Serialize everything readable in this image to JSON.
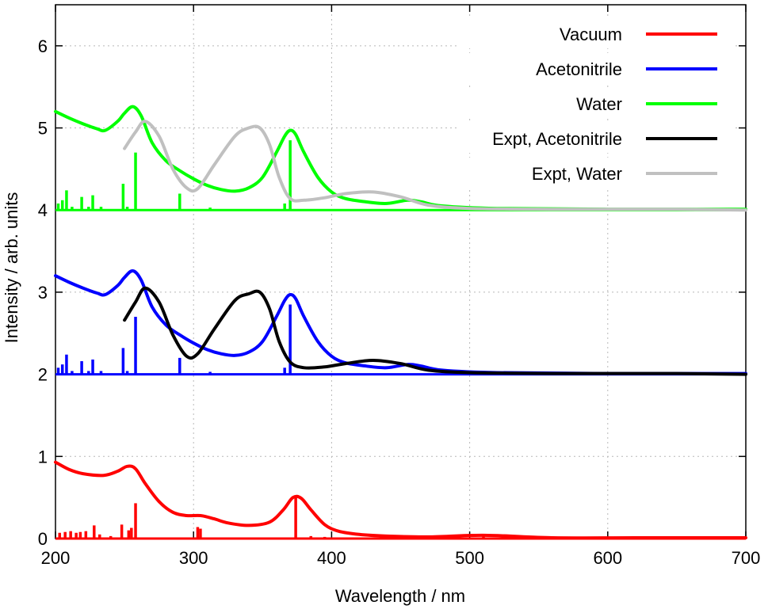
{
  "chart_data": {
    "type": "line",
    "title": "",
    "xlabel": "Wavelength / nm",
    "ylabel": "Intensity / arb. units",
    "xlim": [
      200,
      700
    ],
    "ylim": [
      0,
      6.5
    ],
    "x_ticks": [
      200,
      300,
      400,
      500,
      600,
      700
    ],
    "y_ticks": [
      0,
      1,
      2,
      3,
      4,
      5,
      6
    ],
    "x_tick_labels": [
      "200",
      "300",
      "400",
      "500",
      "600",
      "700"
    ],
    "y_tick_labels": [
      "0",
      "1",
      "2",
      "3",
      "4",
      "5",
      "6"
    ],
    "grid": true,
    "legend_position": "top-right",
    "series": [
      {
        "name": "Vacuum",
        "color": "#ff0000",
        "x": [
          200,
          210,
          220,
          235,
          245,
          252,
          258,
          265,
          275,
          285,
          295,
          305,
          315,
          325,
          340,
          355,
          365,
          372,
          378,
          385,
          395,
          405,
          420,
          440,
          470,
          510,
          560,
          620,
          700
        ],
        "y": [
          0.93,
          0.84,
          0.79,
          0.77,
          0.82,
          0.88,
          0.85,
          0.67,
          0.45,
          0.32,
          0.28,
          0.28,
          0.24,
          0.19,
          0.16,
          0.2,
          0.35,
          0.5,
          0.49,
          0.35,
          0.17,
          0.09,
          0.05,
          0.03,
          0.02,
          0.04,
          0.01,
          0.01,
          0.01
        ],
        "sticks": [
          [
            203,
            0.07
          ],
          [
            207,
            0.08
          ],
          [
            211,
            0.09
          ],
          [
            215,
            0.07
          ],
          [
            218,
            0.08
          ],
          [
            222,
            0.09
          ],
          [
            228,
            0.16
          ],
          [
            232,
            0.05
          ],
          [
            240,
            0.03
          ],
          [
            248,
            0.17
          ],
          [
            253,
            0.1
          ],
          [
            255,
            0.13
          ],
          [
            258,
            0.43
          ],
          [
            303,
            0.14
          ],
          [
            305,
            0.12
          ],
          [
            374,
            0.5
          ],
          [
            385,
            0.03
          ],
          [
            395,
            0.02
          ],
          [
            510,
            0.03
          ]
        ]
      },
      {
        "name": "Acetonitrile",
        "color": "#0000ff",
        "x": [
          200,
          210,
          220,
          230,
          236,
          245,
          250,
          256,
          262,
          270,
          280,
          290,
          300,
          310,
          320,
          330,
          340,
          350,
          360,
          366,
          370,
          374,
          380,
          390,
          400,
          410,
          425,
          440,
          455,
          465,
          480,
          520,
          600,
          700
        ],
        "y": [
          3.2,
          3.12,
          3.05,
          2.99,
          2.97,
          3.08,
          3.18,
          3.26,
          3.15,
          2.82,
          2.6,
          2.48,
          2.38,
          2.3,
          2.25,
          2.23,
          2.27,
          2.4,
          2.7,
          2.9,
          2.97,
          2.92,
          2.7,
          2.4,
          2.22,
          2.14,
          2.1,
          2.08,
          2.12,
          2.1,
          2.05,
          2.02,
          2.01,
          2.01
        ],
        "sticks": [
          [
            202,
            2.08
          ],
          [
            205,
            2.12
          ],
          [
            208,
            2.24
          ],
          [
            212,
            2.04
          ],
          [
            219,
            2.16
          ],
          [
            224,
            2.04
          ],
          [
            227,
            2.18
          ],
          [
            233,
            2.04
          ],
          [
            249,
            2.32
          ],
          [
            252,
            2.04
          ],
          [
            258,
            2.7
          ],
          [
            290,
            2.2
          ],
          [
            312,
            2.03
          ],
          [
            366,
            2.08
          ],
          [
            370,
            2.85
          ]
        ],
        "baseline": 2
      },
      {
        "name": "Water",
        "color": "#00ff00",
        "x": [
          200,
          210,
          220,
          230,
          236,
          245,
          250,
          256,
          262,
          270,
          280,
          290,
          300,
          310,
          320,
          330,
          340,
          350,
          360,
          366,
          370,
          374,
          380,
          390,
          400,
          410,
          425,
          440,
          455,
          465,
          480,
          520,
          600,
          700
        ],
        "y": [
          5.2,
          5.12,
          5.05,
          4.99,
          4.97,
          5.08,
          5.18,
          5.26,
          5.15,
          4.82,
          4.6,
          4.48,
          4.38,
          4.3,
          4.25,
          4.23,
          4.27,
          4.4,
          4.7,
          4.9,
          4.97,
          4.92,
          4.7,
          4.4,
          4.22,
          4.14,
          4.1,
          4.08,
          4.12,
          4.1,
          4.05,
          4.02,
          4.01,
          4.01
        ],
        "sticks": [
          [
            202,
            4.08
          ],
          [
            205,
            4.12
          ],
          [
            208,
            4.24
          ],
          [
            212,
            4.04
          ],
          [
            219,
            4.16
          ],
          [
            224,
            4.04
          ],
          [
            227,
            4.18
          ],
          [
            233,
            4.04
          ],
          [
            249,
            4.32
          ],
          [
            252,
            4.04
          ],
          [
            258,
            4.7
          ],
          [
            290,
            4.2
          ],
          [
            312,
            4.03
          ],
          [
            366,
            4.08
          ],
          [
            370,
            4.85
          ]
        ],
        "baseline": 4
      },
      {
        "name": "Expt, Acetonitrile",
        "color": "#000000",
        "x": [
          250,
          258,
          265,
          275,
          285,
          295,
          303,
          315,
          330,
          340,
          348,
          355,
          362,
          370,
          380,
          395,
          410,
          430,
          450,
          470,
          500,
          560,
          650,
          700
        ],
        "y": [
          2.66,
          2.88,
          3.05,
          2.88,
          2.48,
          2.22,
          2.25,
          2.55,
          2.9,
          2.98,
          3.0,
          2.8,
          2.4,
          2.15,
          2.08,
          2.09,
          2.13,
          2.17,
          2.13,
          2.05,
          2.02,
          2.01,
          2.01,
          2.0
        ]
      },
      {
        "name": "Expt, Water",
        "color": "#c0c0c0",
        "x": [
          250,
          258,
          265,
          275,
          285,
          295,
          303,
          315,
          330,
          340,
          348,
          355,
          362,
          370,
          380,
          395,
          410,
          430,
          450,
          470,
          500,
          560,
          650,
          700
        ],
        "y": [
          4.75,
          4.95,
          5.08,
          4.9,
          4.5,
          4.27,
          4.26,
          4.55,
          4.9,
          5.0,
          5.0,
          4.8,
          4.4,
          4.14,
          4.12,
          4.15,
          4.2,
          4.22,
          4.16,
          4.06,
          4.02,
          4.01,
          4.01,
          4.0
        ]
      }
    ]
  }
}
